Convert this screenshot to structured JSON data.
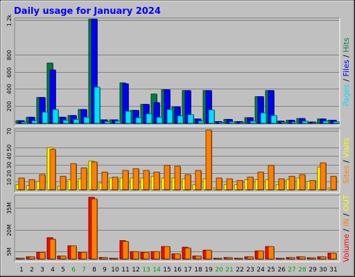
{
  "chart_data": {
    "type": "bar",
    "title": "Daily usage for January 2024",
    "colors": {
      "background": "#C0C0C0",
      "title": "#0000FF",
      "hits": "#008040",
      "files": "#0000FF",
      "pages": "#00E0FF",
      "visits": "#FFFF00",
      "sites": "#FF8000",
      "volume": "#FF0000",
      "in": "#FF8000",
      "out": "#FFFF00",
      "weekend_day": "#00A000",
      "weekday": "#000000"
    },
    "days": [
      {
        "label": "1",
        "weekend": false
      },
      {
        "label": "2",
        "weekend": false
      },
      {
        "label": "3",
        "weekend": false
      },
      {
        "label": "4",
        "weekend": false
      },
      {
        "label": "5",
        "weekend": false
      },
      {
        "label": "6",
        "weekend": true
      },
      {
        "label": "7",
        "weekend": true
      },
      {
        "label": "8",
        "weekend": false
      },
      {
        "label": "9",
        "weekend": false
      },
      {
        "label": "10",
        "weekend": false
      },
      {
        "label": "11",
        "weekend": false
      },
      {
        "label": "12",
        "weekend": false
      },
      {
        "label": "13",
        "weekend": true
      },
      {
        "label": "14",
        "weekend": true
      },
      {
        "label": "15",
        "weekend": false
      },
      {
        "label": "16",
        "weekend": false
      },
      {
        "label": "17",
        "weekend": false
      },
      {
        "label": "18",
        "weekend": false
      },
      {
        "label": "19",
        "weekend": false
      },
      {
        "label": "20",
        "weekend": true
      },
      {
        "label": "21",
        "weekend": true
      },
      {
        "label": "22",
        "weekend": false
      },
      {
        "label": "23",
        "weekend": false
      },
      {
        "label": "24",
        "weekend": false
      },
      {
        "label": "25",
        "weekend": false
      },
      {
        "label": "26",
        "weekend": false
      },
      {
        "label": "27",
        "weekend": true
      },
      {
        "label": "28",
        "weekend": true
      },
      {
        "label": "29",
        "weekend": false
      },
      {
        "label": "30",
        "weekend": false
      },
      {
        "label": "31",
        "weekend": false
      }
    ],
    "panels": [
      {
        "key": "hits",
        "ylim": [
          0,
          1200
        ],
        "ticks": [
          {
            "v": 200,
            "t": "200"
          },
          {
            "v": 400,
            "t": "400"
          },
          {
            "v": 600,
            "t": "600"
          },
          {
            "v": 800,
            "t": "800"
          },
          {
            "v": 1200,
            "t": "1.2k"
          }
        ],
        "legend": [
          {
            "text": "Pages",
            "color": "#00E0FF"
          },
          {
            "text": " / ",
            "color": "#000000"
          },
          {
            "text": "Files",
            "color": "#0000FF"
          },
          {
            "text": " / ",
            "color": "#000000"
          },
          {
            "text": "Hits",
            "color": "#008040"
          }
        ],
        "series": [
          {
            "name": "Hits",
            "color": "#008040",
            "offset": 0,
            "values": [
              30,
              70,
              300,
              700,
              70,
              90,
              160,
              1210,
              40,
              40,
              470,
              150,
              220,
              340,
              390,
              190,
              380,
              50,
              380,
              20,
              45,
              20,
              65,
              310,
              380,
              25,
              35,
              55,
              15,
              50,
              35
            ]
          },
          {
            "name": "Files",
            "color": "#0000FF",
            "offset": 4,
            "values": [
              30,
              70,
              300,
              620,
              70,
              90,
              160,
              1210,
              40,
              40,
              460,
              150,
              220,
              240,
              390,
              190,
              380,
              50,
              380,
              20,
              45,
              20,
              65,
              310,
              380,
              25,
              35,
              55,
              15,
              50,
              35
            ]
          },
          {
            "name": "Pages",
            "color": "#00E0FF",
            "offset": 8,
            "values": [
              15,
              30,
              130,
              160,
              35,
              45,
              70,
              420,
              20,
              25,
              140,
              65,
              110,
              70,
              160,
              85,
              100,
              25,
              155,
              12,
              18,
              10,
              25,
              120,
              90,
              12,
              15,
              25,
              8,
              25,
              18
            ]
          }
        ]
      },
      {
        "key": "visits",
        "ylim": [
          0,
          70
        ],
        "ticks": [
          {
            "v": 10,
            "t": "10"
          },
          {
            "v": 20,
            "t": "20"
          },
          {
            "v": 30,
            "t": "30"
          },
          {
            "v": 40,
            "t": "40"
          },
          {
            "v": 50,
            "t": "50"
          },
          {
            "v": 70,
            "t": "70"
          }
        ],
        "legend": [
          {
            "text": "Sites",
            "color": "#FF8000"
          },
          {
            "text": " / ",
            "color": "#000000"
          },
          {
            "text": "Visits",
            "color": "#FFFF00"
          }
        ],
        "series": [
          {
            "name": "Visits",
            "color": "#FFFF00",
            "offset": 0,
            "values": [
              6,
              5,
              10,
              50,
              4,
              12,
              13,
              34,
              8,
              14,
              14,
              14,
              14,
              16,
              14,
              14,
              13,
              6,
              13,
              2,
              6,
              6,
              12,
              12,
              12,
              6,
              12,
              14,
              10,
              27,
              2
            ]
          },
          {
            "name": "Sites",
            "color": "#FF8000",
            "offset": 4,
            "values": [
              14,
              12,
              18,
              48,
              16,
              31,
              26,
              33,
              21,
              15,
              23,
              25,
              23,
              21,
              29,
              28,
              18,
              23,
              71,
              14,
              13,
              11,
              15,
              21,
              29,
              13,
              16,
              18,
              11,
              32,
              16
            ]
          }
        ]
      },
      {
        "key": "volume",
        "ylim": [
          0,
          42
        ],
        "ticks": [
          {
            "v": 5,
            "t": "5M"
          },
          {
            "v": 20,
            "t": "20M"
          },
          {
            "v": 35,
            "t": "35M"
          }
        ],
        "legend": [
          {
            "text": "Volume",
            "color": "#FF0000"
          },
          {
            "text": " / ",
            "color": "#000000"
          },
          {
            "text": "IN",
            "color": "#FF8000"
          },
          {
            "text": " / ",
            "color": "#000000"
          },
          {
            "text": "OUT",
            "color": "#FFFF00"
          }
        ],
        "series": [
          {
            "name": "Volume",
            "color": "#FF0000",
            "offset": 0,
            "values": [
              0.5,
              1.5,
              4.5,
              14.5,
              2,
              9,
              4.5,
              42,
              1,
              0.5,
              12.5,
              5,
              4.5,
              5,
              8.5,
              3.5,
              8,
              2,
              6,
              0.5,
              1,
              0.5,
              1.5,
              5.5,
              8.5,
              0.5,
              1,
              1.5,
              0.8,
              1.5,
              4
            ]
          },
          {
            "name": "IN",
            "color": "#FF8000",
            "offset": 4,
            "values": [
              0.5,
              1.5,
              4.5,
              13.5,
              2,
              9,
              4.5,
              41,
              1,
              0.5,
              12,
              5,
              4.5,
              5,
              8.5,
              3.5,
              7.5,
              2,
              6,
              0.5,
              1,
              0.5,
              1.5,
              5.5,
              8.5,
              0.5,
              1,
              1.5,
              0.8,
              1.5,
              4
            ]
          }
        ]
      }
    ]
  }
}
